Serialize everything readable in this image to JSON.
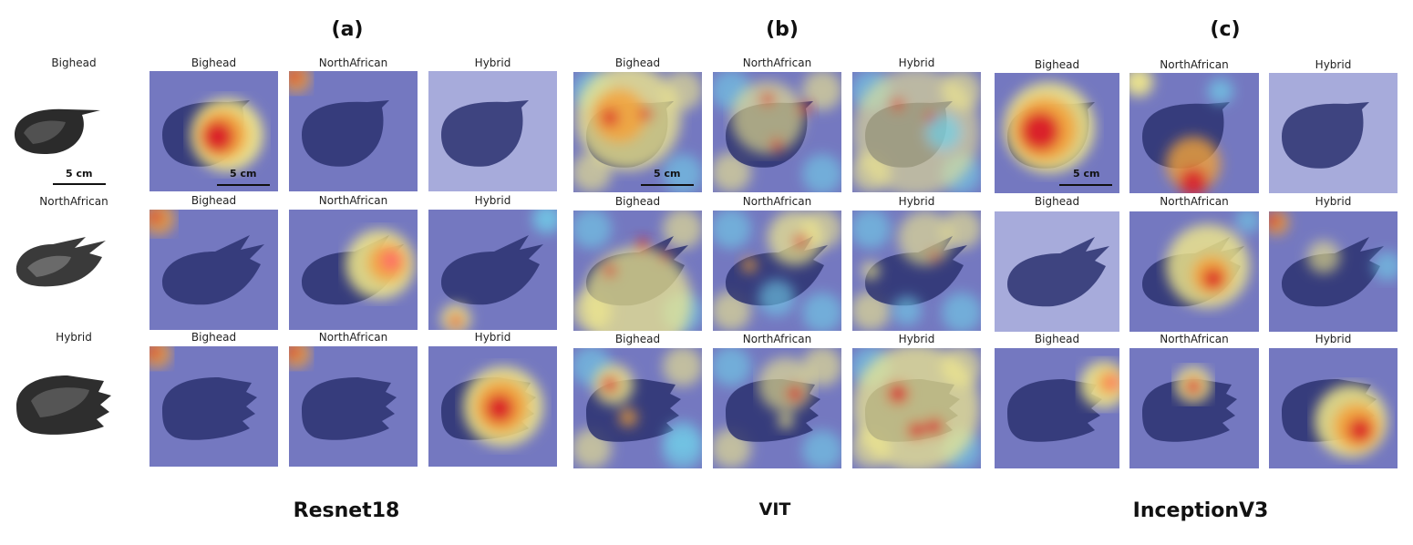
{
  "panels": [
    {
      "tag": "(a)",
      "model": "Resnet18"
    },
    {
      "tag": "(b)",
      "model": "VIT"
    },
    {
      "tag": "(c)",
      "model": "InceptionV3"
    }
  ],
  "row_labels": [
    "Bighead",
    "NorthAfrican",
    "Hybrid"
  ],
  "column_labels": [
    "Bighead",
    "NorthAfrican",
    "Hybrid"
  ],
  "scale_label": "5 cm",
  "colors": {
    "background_blue": "#7478c0",
    "light_blue": "#a7abdb",
    "cyan": "#6fd0ea",
    "yellow": "#f5ec8a",
    "red": "#d8182a",
    "orange": "#f3a33a"
  }
}
